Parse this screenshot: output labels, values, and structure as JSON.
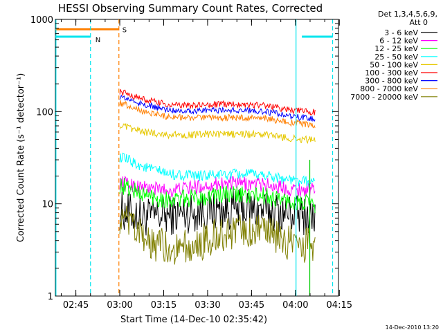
{
  "chart_data": {
    "type": "line",
    "title": "HESSI Observing Summary Count Rates, Corrected",
    "xlabel": "Start Time (14-Dec-10 02:35:42)",
    "ylabel": "Corrected Count Rate (s⁻¹ detector⁻¹)",
    "yscale": "log",
    "ylim": [
      1,
      1000
    ],
    "xlim_minutes": [
      2.3,
      99.0
    ],
    "ytick_labels": [
      "1",
      "10",
      "100",
      "1000"
    ],
    "ytick_values": [
      1,
      10,
      100,
      1000
    ],
    "xtick_labels": [
      "02:45",
      "03:00",
      "03:15",
      "03:30",
      "03:45",
      "04:00",
      "04:15"
    ],
    "xtick_minutes": [
      9.3,
      24.3,
      39.3,
      54.3,
      69.3,
      84.3,
      99.3
    ],
    "legend_header": [
      "Det 1,3,4,5,6,9,",
      "Att 0"
    ],
    "date_stamp": "14-Dec-2010 13:20",
    "markers": {
      "saa_label": "S",
      "night_label": "N",
      "saa_color": "#ff7f00",
      "night_color": "#00e5ee",
      "saa_bar": {
        "x_start": 2.3,
        "x_end": 24.0,
        "y": 780
      },
      "night_segments": [
        {
          "x_start": 2.3,
          "x_end": 14.3,
          "y": 650
        },
        {
          "x_start": 86.5,
          "x_end": 97.0,
          "y": 650
        }
      ],
      "night_lines": [
        2.5,
        14.3,
        84.5,
        97.0
      ],
      "saa_lines": [
        24.0
      ],
      "green_line": 89.2
    },
    "series": [
      {
        "name": "3 - 6 keV",
        "color": "#000000",
        "level": [
          8.5,
          7.2,
          7.5,
          8.0,
          8.6,
          8.8,
          8.5,
          7.8,
          7.2
        ],
        "noise": 0.22
      },
      {
        "name": "6 - 12 keV",
        "color": "#ff00ff",
        "level": [
          17,
          15,
          14,
          15,
          16.5,
          16.5,
          16,
          14.5,
          14
        ],
        "noise": 0.08
      },
      {
        "name": "12 - 25 keV",
        "color": "#00ff00",
        "level": [
          16,
          12.5,
          11,
          11.5,
          12.5,
          12.5,
          12,
          10.5,
          9.8
        ],
        "noise": 0.1
      },
      {
        "name": "25 - 50 keV",
        "color": "#00ffff",
        "level": [
          32,
          25,
          21,
          20,
          20.5,
          21,
          20.5,
          18,
          17
        ],
        "noise": 0.06
      },
      {
        "name": "50 - 100 keV",
        "color": "#e6c800",
        "level": [
          70,
          60,
          56,
          56,
          57,
          57,
          56,
          51,
          49
        ],
        "noise": 0.04
      },
      {
        "name": "100 - 300 keV",
        "color": "#ff0000",
        "level": [
          165,
          135,
          118,
          116,
          120,
          120,
          116,
          104,
          98
        ],
        "noise": 0.035
      },
      {
        "name": "300 - 800 keV",
        "color": "#0000ff",
        "level": [
          145,
          118,
          104,
          102,
          104,
          103,
          100,
          89,
          82
        ],
        "noise": 0.035
      },
      {
        "name": "800 - 7000 keV",
        "color": "#ff7f00",
        "level": [
          125,
          100,
          88,
          85,
          86,
          86,
          84,
          76,
          71
        ],
        "noise": 0.035
      },
      {
        "name": "7000 - 20000 keV",
        "color": "#7f7f00",
        "level": [
          7.0,
          4.0,
          3.3,
          3.4,
          4.6,
          5.0,
          4.7,
          3.8,
          3.5
        ],
        "noise": 0.2
      }
    ],
    "series_time_range": [
      24.3,
      91.0
    ]
  }
}
